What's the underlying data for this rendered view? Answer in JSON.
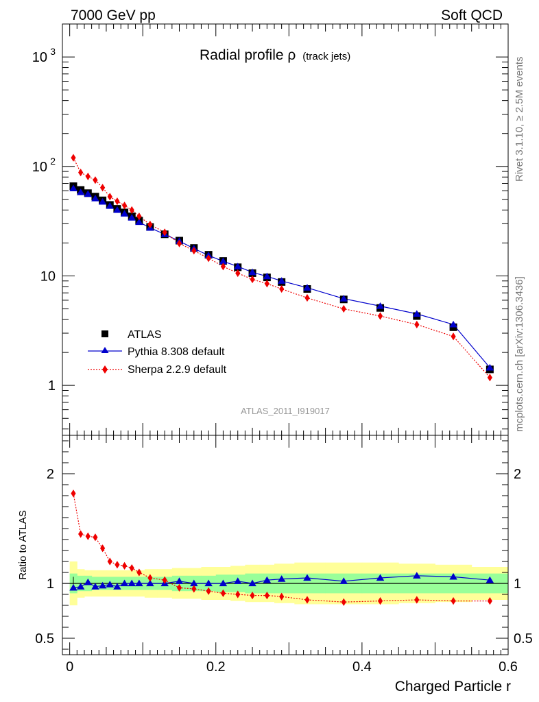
{
  "header": {
    "left": "7000 GeV pp",
    "right": "Soft QCD"
  },
  "side_labels": {
    "top": "Rivet 3.1.10, ≥ 2.5M events",
    "bottom": "mcplots.cern.ch [arXiv:1306.3436]"
  },
  "chart_data": [
    {
      "type": "scatter",
      "title_main": "Radial profile ρ",
      "title_sub": "(track jets)",
      "watermark": "ATLAS_2011_I919017",
      "yscale": "log",
      "ylim": [
        0.35,
        2000
      ],
      "xlim": [
        -0.01,
        0.6
      ],
      "y_ticks": [
        {
          "v": 1,
          "label": "1"
        },
        {
          "v": 10,
          "label": "10"
        }
      ],
      "y_ticks_pow": [
        {
          "v": 100,
          "base": "10",
          "exp": "2"
        },
        {
          "v": 1000,
          "base": "10",
          "exp": "3"
        }
      ],
      "legend": [
        {
          "name": "ATLAS",
          "marker": "square",
          "color": "#000000"
        },
        {
          "name": "Pythia 8.308 default",
          "marker": "triangle",
          "color": "#0000cc"
        },
        {
          "name": "Sherpa 2.2.9 default",
          "marker": "diamond",
          "color": "#ee0000"
        }
      ],
      "x": [
        0.005,
        0.015,
        0.025,
        0.035,
        0.045,
        0.055,
        0.065,
        0.075,
        0.085,
        0.095,
        0.11,
        0.13,
        0.15,
        0.17,
        0.19,
        0.21,
        0.23,
        0.25,
        0.27,
        0.29,
        0.325,
        0.375,
        0.425,
        0.475,
        0.525,
        0.575
      ],
      "series": [
        {
          "name": "ATLAS",
          "values": [
            66,
            61,
            57,
            53,
            49,
            44.5,
            41,
            38,
            35,
            32,
            28,
            24,
            21,
            18,
            15.6,
            13.7,
            12,
            10.6,
            9.7,
            8.8,
            7.6,
            6.1,
            5.1,
            4.3,
            3.4,
            1.4
          ]
        },
        {
          "name": "Pythia 8.308 default",
          "values": [
            63,
            58,
            56,
            51,
            47.5,
            43.5,
            40,
            37,
            34,
            31,
            27.5,
            24,
            20.8,
            17.8,
            15.4,
            13.6,
            12.2,
            10.8,
            9.9,
            9.0,
            7.8,
            6.2,
            5.3,
            4.5,
            3.6,
            1.45
          ]
        },
        {
          "name": "Sherpa 2.2.9 default",
          "values": [
            120,
            88,
            81,
            75,
            64,
            53,
            48,
            44,
            40,
            35,
            29.5,
            25,
            19.8,
            17,
            14.5,
            12.2,
            10.6,
            9.3,
            8.5,
            7.6,
            6.3,
            5.0,
            4.3,
            3.6,
            2.8,
            1.18
          ]
        }
      ]
    },
    {
      "type": "scatter",
      "ylabel": "Ratio to ATLAS",
      "xlabel": "Charged Particle r",
      "ylim": [
        0.35,
        2.35
      ],
      "xlim": [
        -0.01,
        0.6
      ],
      "y_ticks": [
        {
          "v": 0.5,
          "label": "0.5"
        },
        {
          "v": 1,
          "label": "1"
        },
        {
          "v": 2,
          "label": "2"
        }
      ],
      "x_ticks": [
        {
          "v": 0,
          "label": "0"
        },
        {
          "v": 0.2,
          "label": "0.2"
        },
        {
          "v": 0.4,
          "label": "0.4"
        },
        {
          "v": 0.6,
          "label": "0.6"
        }
      ],
      "x": [
        0.005,
        0.015,
        0.025,
        0.035,
        0.045,
        0.055,
        0.065,
        0.075,
        0.085,
        0.095,
        0.11,
        0.13,
        0.15,
        0.17,
        0.19,
        0.21,
        0.23,
        0.25,
        0.27,
        0.29,
        0.325,
        0.375,
        0.425,
        0.475,
        0.525,
        0.575
      ],
      "band_stat_half": [
        0.09,
        0.07,
        0.07,
        0.06,
        0.06,
        0.06,
        0.06,
        0.06,
        0.06,
        0.06,
        0.06,
        0.06,
        0.07,
        0.07,
        0.07,
        0.08,
        0.08,
        0.09,
        0.09,
        0.09,
        0.09,
        0.09,
        0.09,
        0.09,
        0.09,
        0.09
      ],
      "band_total_half": [
        0.2,
        0.13,
        0.12,
        0.12,
        0.12,
        0.12,
        0.12,
        0.12,
        0.12,
        0.12,
        0.13,
        0.13,
        0.14,
        0.14,
        0.15,
        0.15,
        0.16,
        0.17,
        0.17,
        0.18,
        0.19,
        0.19,
        0.19,
        0.18,
        0.17,
        0.15
      ],
      "series": [
        {
          "name": "Pythia 8.308 default",
          "values": [
            0.96,
            0.97,
            1.01,
            0.97,
            0.98,
            0.99,
            0.97,
            1.0,
            1.0,
            1.0,
            1.0,
            1.0,
            1.02,
            1.0,
            1.0,
            1.0,
            1.02,
            1.0,
            1.03,
            1.04,
            1.05,
            1.02,
            1.05,
            1.07,
            1.06,
            1.03
          ]
        },
        {
          "name": "Sherpa 2.2.9 default",
          "values": [
            1.82,
            1.45,
            1.43,
            1.42,
            1.32,
            1.2,
            1.17,
            1.16,
            1.14,
            1.1,
            1.05,
            1.03,
            0.96,
            0.95,
            0.93,
            0.91,
            0.9,
            0.89,
            0.89,
            0.88,
            0.85,
            0.83,
            0.84,
            0.85,
            0.84,
            0.84
          ]
        }
      ]
    }
  ]
}
